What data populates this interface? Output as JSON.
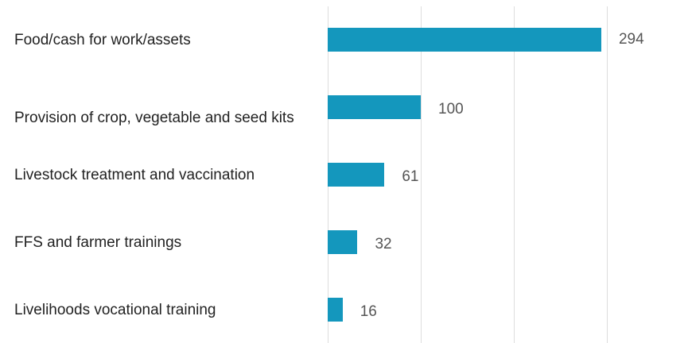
{
  "chart_data": {
    "type": "bar",
    "orientation": "horizontal",
    "categories": [
      "Food/cash for work/assets",
      "Provision of crop, vegetable and seed kits",
      "Livestock treatment and vaccination",
      "FFS and farmer trainings",
      "Livelihoods vocational training"
    ],
    "values": [
      294,
      100,
      61,
      32,
      16
    ],
    "color": "#1497bd",
    "xlim": [
      0,
      300
    ],
    "xticks": [
      0,
      100,
      200,
      300
    ],
    "grid": true
  }
}
